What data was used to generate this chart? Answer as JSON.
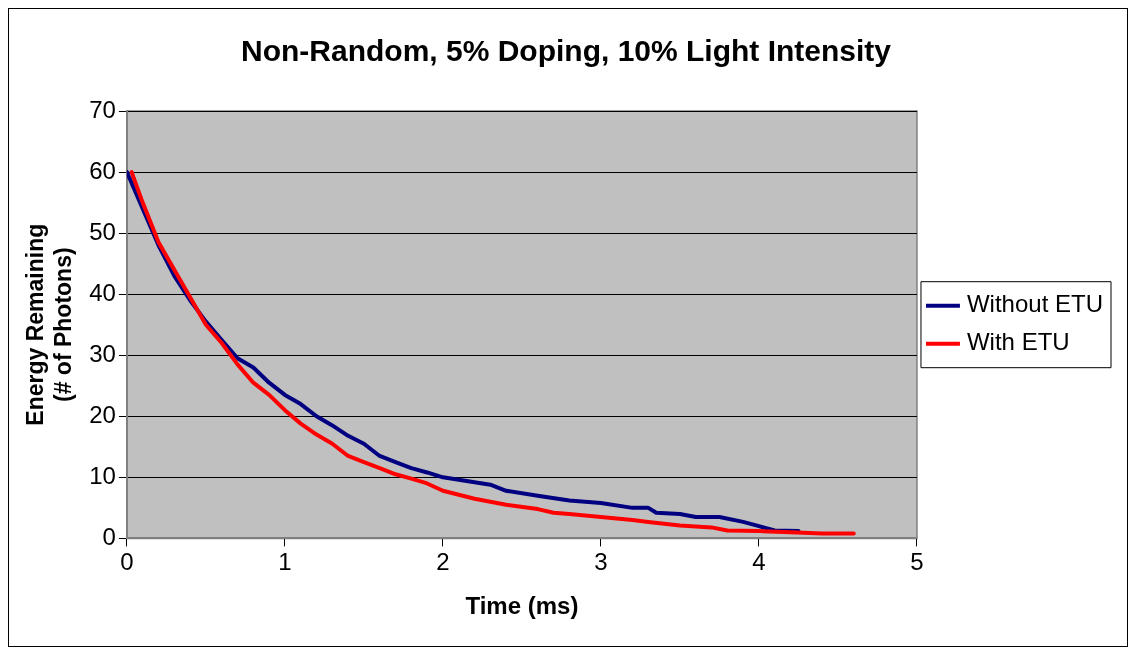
{
  "chart_data": {
    "type": "line",
    "title": "Non-Random, 5% Doping, 10% Light Intensity",
    "xlabel": "Time (ms)",
    "ylabel": "Energy Remaining (# of Photons)",
    "xlim": [
      0,
      5
    ],
    "xticks": [
      0,
      1,
      2,
      3,
      4,
      5
    ],
    "ylim": [
      0,
      70
    ],
    "yticks": [
      0,
      10,
      20,
      30,
      40,
      50,
      60,
      70
    ],
    "grid": "y",
    "legend": "right",
    "marker": "none",
    "line_style": "solid",
    "series": [
      {
        "name": "Without ETU",
        "color": "#000080",
        "x": [
          0,
          0.1,
          0.2,
          0.3,
          0.4,
          0.5,
          0.6,
          0.7,
          0.8,
          0.9,
          1.0,
          1.1,
          1.2,
          1.3,
          1.4,
          1.5,
          1.6,
          1.7,
          1.8,
          1.9,
          2.0,
          2.2,
          2.3,
          2.4,
          2.6,
          2.8,
          3.0,
          3.2,
          3.3,
          3.35,
          3.5,
          3.6,
          3.75,
          3.9,
          4.0,
          4.1,
          4.25
        ],
        "values": [
          60,
          54,
          48,
          43,
          39,
          35.5,
          32.5,
          29.5,
          28,
          25.5,
          23.5,
          22,
          20,
          18.5,
          16.8,
          15.5,
          13.5,
          12.5,
          11.5,
          10.8,
          10,
          9.2,
          8.8,
          7.8,
          7,
          6.2,
          5.8,
          5,
          5,
          4.2,
          4,
          3.5,
          3.5,
          2.7,
          2,
          1.3,
          1.2
        ]
      },
      {
        "name": "With ETU",
        "color": "#ff0000",
        "x": [
          0.03,
          0.1,
          0.2,
          0.3,
          0.4,
          0.5,
          0.6,
          0.7,
          0.8,
          0.9,
          1.0,
          1.1,
          1.2,
          1.3,
          1.4,
          1.5,
          1.6,
          1.7,
          1.8,
          1.9,
          2.0,
          2.2,
          2.4,
          2.6,
          2.7,
          2.8,
          3.0,
          3.2,
          3.3,
          3.5,
          3.7,
          3.8,
          4.0,
          4.2,
          4.4,
          4.6
        ],
        "values": [
          60,
          55,
          48.5,
          44,
          39.5,
          35,
          32,
          28.5,
          25.5,
          23.5,
          21,
          18.8,
          17,
          15.5,
          13.5,
          12.5,
          11.5,
          10.5,
          9.8,
          9,
          7.8,
          6.5,
          5.5,
          4.8,
          4.2,
          4,
          3.5,
          3,
          2.7,
          2.1,
          1.8,
          1.3,
          1.2,
          1,
          0.8,
          0.8
        ]
      }
    ]
  }
}
